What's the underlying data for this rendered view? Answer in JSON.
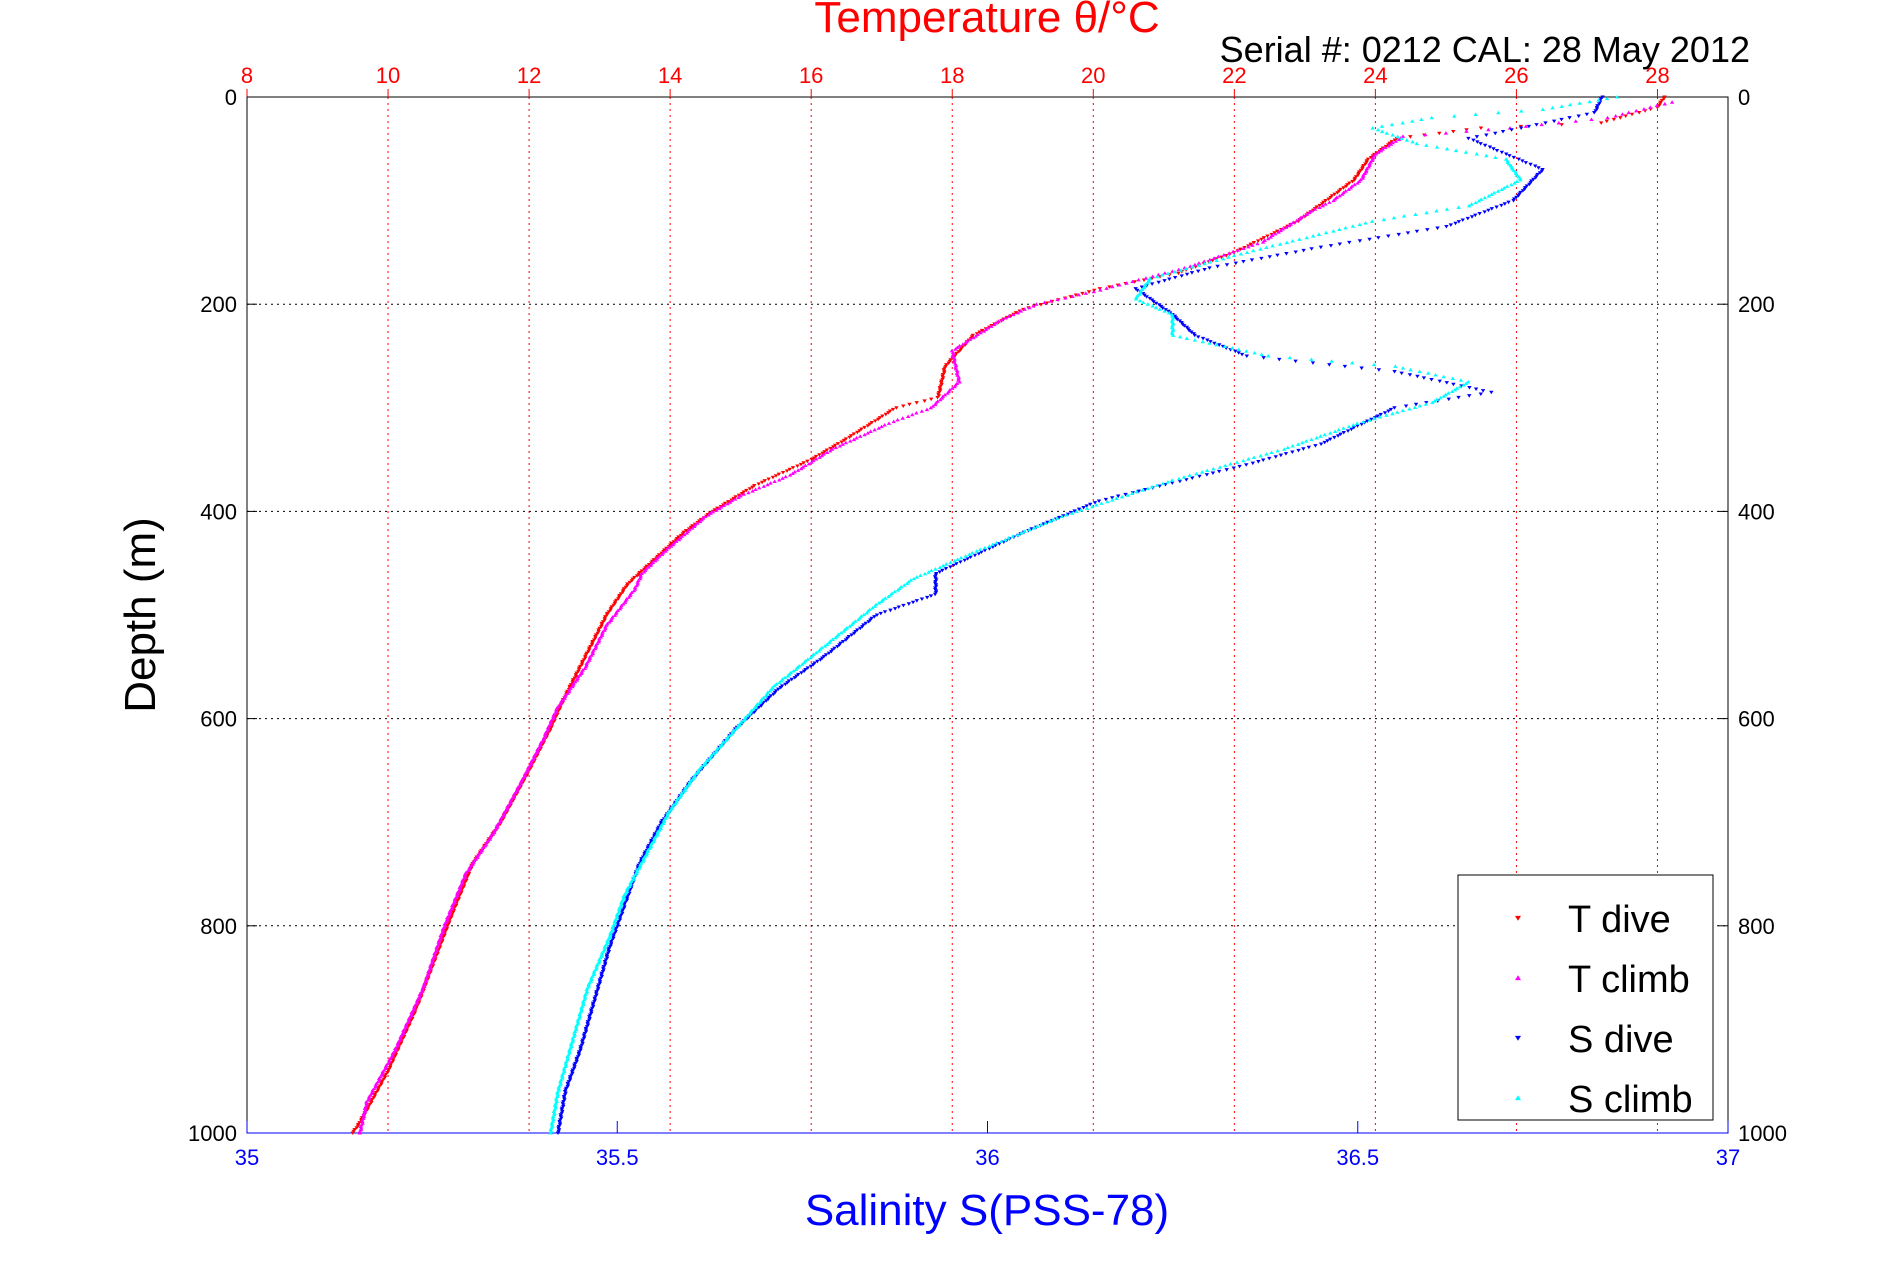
{
  "chart_data": {
    "type": "scatter",
    "title": "Temperature θ/°C",
    "subtitle": "Serial #: 0212  CAL: 28 May 2012",
    "ylabel": "Depth (m)",
    "xlabel_bottom": "Salinity S(PSS-78)",
    "ylim": [
      0,
      1000
    ],
    "y_reversed": true,
    "y_ticks": [
      "0",
      "200",
      "400",
      "600",
      "800",
      "1000"
    ],
    "x_top": {
      "label_color": "#ff0000",
      "lim": [
        8,
        29
      ],
      "ticks": [
        "8",
        "10",
        "12",
        "14",
        "16",
        "18",
        "20",
        "22",
        "24",
        "26",
        "28"
      ]
    },
    "x_bottom": {
      "label_color": "#0000ff",
      "lim": [
        35,
        37
      ],
      "ticks": [
        "35",
        "35.5",
        "36",
        "36.5",
        "37"
      ]
    },
    "grid": true,
    "legend_position": "bottom-right",
    "series": [
      {
        "name": "T dive",
        "axis": "top",
        "color": "#ff0000",
        "marker": "triangle-down",
        "points": [
          [
            28.1,
            0
          ],
          [
            28.0,
            10
          ],
          [
            27.2,
            25
          ],
          [
            25.5,
            30
          ],
          [
            24.3,
            40
          ],
          [
            23.9,
            60
          ],
          [
            23.7,
            80
          ],
          [
            23.3,
            100
          ],
          [
            22.9,
            120
          ],
          [
            22.0,
            150
          ],
          [
            21.2,
            170
          ],
          [
            20.1,
            185
          ],
          [
            19.0,
            205
          ],
          [
            18.3,
            230
          ],
          [
            17.9,
            260
          ],
          [
            17.8,
            290
          ],
          [
            17.2,
            300
          ],
          [
            16.5,
            330
          ],
          [
            16.0,
            350
          ],
          [
            15.2,
            375
          ],
          [
            14.6,
            400
          ],
          [
            14.2,
            420
          ],
          [
            13.8,
            445
          ],
          [
            13.4,
            470
          ],
          [
            13.1,
            500
          ],
          [
            12.8,
            540
          ],
          [
            12.5,
            580
          ],
          [
            12.3,
            610
          ],
          [
            12.0,
            650
          ],
          [
            11.6,
            700
          ],
          [
            11.2,
            740
          ],
          [
            10.9,
            790
          ],
          [
            10.4,
            880
          ],
          [
            10.0,
            940
          ],
          [
            9.6,
            990
          ],
          [
            9.5,
            1000
          ]
        ]
      },
      {
        "name": "T climb",
        "axis": "top",
        "color": "#ff00ff",
        "marker": "triangle-up",
        "points": [
          [
            28.2,
            5
          ],
          [
            27.3,
            20
          ],
          [
            25.9,
            30
          ],
          [
            24.4,
            38
          ],
          [
            24.0,
            55
          ],
          [
            23.8,
            80
          ],
          [
            23.4,
            100
          ],
          [
            23.1,
            110
          ],
          [
            22.4,
            140
          ],
          [
            21.3,
            165
          ],
          [
            20.0,
            188
          ],
          [
            19.2,
            200
          ],
          [
            18.7,
            215
          ],
          [
            18.0,
            245
          ],
          [
            18.1,
            275
          ],
          [
            17.7,
            300
          ],
          [
            17.1,
            315
          ],
          [
            16.3,
            340
          ],
          [
            15.7,
            365
          ],
          [
            15.0,
            385
          ],
          [
            14.5,
            405
          ],
          [
            13.9,
            440
          ],
          [
            13.6,
            460
          ],
          [
            13.5,
            475
          ],
          [
            13.1,
            510
          ],
          [
            12.8,
            550
          ],
          [
            12.4,
            590
          ],
          [
            12.2,
            620
          ],
          [
            11.9,
            660
          ],
          [
            11.5,
            710
          ],
          [
            11.1,
            750
          ],
          [
            10.8,
            800
          ],
          [
            10.5,
            860
          ],
          [
            10.1,
            920
          ],
          [
            9.7,
            970
          ],
          [
            9.6,
            1000
          ]
        ]
      },
      {
        "name": "S dive",
        "axis": "bottom",
        "color": "#0000ff",
        "marker": "triangle-down",
        "points": [
          [
            36.83,
            0
          ],
          [
            36.82,
            15
          ],
          [
            36.72,
            30
          ],
          [
            36.65,
            40
          ],
          [
            36.7,
            55
          ],
          [
            36.75,
            70
          ],
          [
            36.71,
            100
          ],
          [
            36.62,
            125
          ],
          [
            36.45,
            145
          ],
          [
            36.3,
            165
          ],
          [
            36.2,
            185
          ],
          [
            36.25,
            210
          ],
          [
            36.28,
            230
          ],
          [
            36.35,
            250
          ],
          [
            36.55,
            265
          ],
          [
            36.68,
            285
          ],
          [
            36.55,
            300
          ],
          [
            36.45,
            335
          ],
          [
            36.35,
            355
          ],
          [
            36.15,
            390
          ],
          [
            36.05,
            420
          ],
          [
            35.93,
            460
          ],
          [
            35.93,
            480
          ],
          [
            35.85,
            500
          ],
          [
            35.78,
            540
          ],
          [
            35.72,
            570
          ],
          [
            35.66,
            610
          ],
          [
            35.6,
            660
          ],
          [
            35.56,
            700
          ],
          [
            35.53,
            740
          ],
          [
            35.51,
            780
          ],
          [
            35.49,
            820
          ],
          [
            35.47,
            870
          ],
          [
            35.45,
            920
          ],
          [
            35.43,
            960
          ],
          [
            35.42,
            1000
          ]
        ]
      },
      {
        "name": "S climb",
        "axis": "bottom",
        "color": "#00ffff",
        "marker": "triangle-up",
        "points": [
          [
            36.85,
            0
          ],
          [
            36.75,
            12
          ],
          [
            36.6,
            20
          ],
          [
            36.52,
            30
          ],
          [
            36.58,
            45
          ],
          [
            36.7,
            60
          ],
          [
            36.72,
            80
          ],
          [
            36.65,
            105
          ],
          [
            36.52,
            120
          ],
          [
            36.35,
            150
          ],
          [
            36.22,
            175
          ],
          [
            36.2,
            195
          ],
          [
            36.25,
            210
          ],
          [
            36.25,
            230
          ],
          [
            36.38,
            250
          ],
          [
            36.55,
            260
          ],
          [
            36.65,
            275
          ],
          [
            36.6,
            295
          ],
          [
            36.5,
            315
          ],
          [
            36.4,
            340
          ],
          [
            36.25,
            370
          ],
          [
            36.1,
            405
          ],
          [
            35.98,
            440
          ],
          [
            35.9,
            465
          ],
          [
            35.85,
            490
          ],
          [
            35.78,
            530
          ],
          [
            35.71,
            570
          ],
          [
            35.66,
            610
          ],
          [
            35.61,
            650
          ],
          [
            35.57,
            690
          ],
          [
            35.54,
            730
          ],
          [
            35.51,
            770
          ],
          [
            35.49,
            810
          ],
          [
            35.46,
            860
          ],
          [
            35.44,
            910
          ],
          [
            35.42,
            960
          ],
          [
            35.41,
            1000
          ]
        ]
      }
    ]
  }
}
